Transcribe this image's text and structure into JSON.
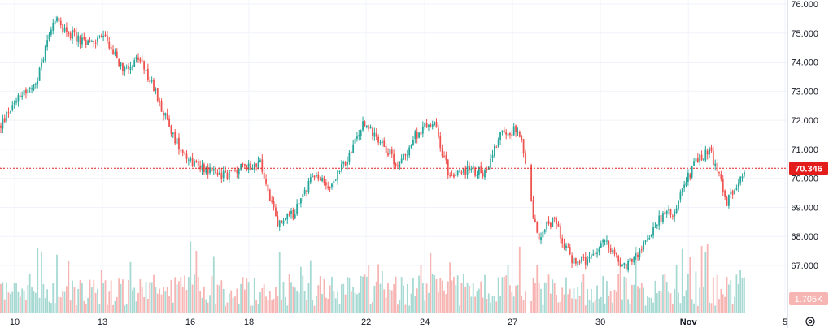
{
  "chart_data": {
    "type": "candlestick",
    "grid": true,
    "colors": {
      "up": "#26a69a",
      "down": "#ef5350",
      "up_volume": "#a7d9d3",
      "down_volume": "#f6b5b3",
      "grid": "#f0f3fa",
      "axis_text": "#131722",
      "price_line": "#e31c1c"
    },
    "y_axis": {
      "side": "right",
      "ticks": [
        {
          "value": 67,
          "label": "67.000"
        },
        {
          "value": 68,
          "label": "68.000"
        },
        {
          "value": 69,
          "label": "69.000"
        },
        {
          "value": 70,
          "label": "70.000"
        },
        {
          "value": 71,
          "label": "71.000"
        },
        {
          "value": 72,
          "label": "72.000"
        },
        {
          "value": 73,
          "label": "73.000"
        },
        {
          "value": 74,
          "label": "74.000"
        },
        {
          "value": 75,
          "label": "75.000"
        },
        {
          "value": 76,
          "label": "76.000"
        }
      ]
    },
    "x_axis": {
      "ticks": [
        "10",
        "13",
        "16",
        "18",
        "22",
        "24",
        "27",
        "30",
        "Nov",
        "5"
      ]
    },
    "last_price": {
      "value": 70.346,
      "label": "70.346"
    },
    "volume_label": "1.705K",
    "settings_icon": "settings-gear-icon",
    "price_path": [
      {
        "date": "10",
        "price": 71.8
      },
      {
        "date": "10",
        "price": 72.9
      },
      {
        "date": "11",
        "price": 73.1
      },
      {
        "date": "11",
        "price": 75.5
      },
      {
        "date": "12",
        "price": 75.0
      },
      {
        "date": "12",
        "price": 74.6
      },
      {
        "date": "13",
        "price": 74.9
      },
      {
        "date": "13",
        "price": 73.8
      },
      {
        "date": "14",
        "price": 74.1
      },
      {
        "date": "14",
        "price": 72.9
      },
      {
        "date": "15",
        "price": 71.4
      },
      {
        "date": "15",
        "price": 70.6
      },
      {
        "date": "16",
        "price": 70.3
      },
      {
        "date": "17",
        "price": 70.1
      },
      {
        "date": "17",
        "price": 70.4
      },
      {
        "date": "18",
        "price": 70.5
      },
      {
        "date": "19",
        "price": 68.4
      },
      {
        "date": "20",
        "price": 68.8
      },
      {
        "date": "21",
        "price": 70.1
      },
      {
        "date": "21",
        "price": 69.7
      },
      {
        "date": "22",
        "price": 70.6
      },
      {
        "date": "22",
        "price": 71.9
      },
      {
        "date": "23",
        "price": 71.3
      },
      {
        "date": "23",
        "price": 70.4
      },
      {
        "date": "24",
        "price": 71.5
      },
      {
        "date": "24",
        "price": 72.0
      },
      {
        "date": "25",
        "price": 70.0
      },
      {
        "date": "25",
        "price": 70.3
      },
      {
        "date": "26",
        "price": 70.2
      },
      {
        "date": "26",
        "price": 71.7
      },
      {
        "date": "27",
        "price": 71.6
      },
      {
        "date": "28",
        "price": 68.0
      },
      {
        "date": "28",
        "price": 68.6
      },
      {
        "date": "29",
        "price": 67.2
      },
      {
        "date": "29",
        "price": 67.1
      },
      {
        "date": "30",
        "price": 67.9
      },
      {
        "date": "30",
        "price": 66.9
      },
      {
        "date": "31",
        "price": 67.5
      },
      {
        "date": "31",
        "price": 68.6
      },
      {
        "date": "Nov",
        "price": 68.9
      },
      {
        "date": "Nov",
        "price": 70.4
      },
      {
        "date": "Nov",
        "price": 71.0
      },
      {
        "date": "Nov",
        "price": 69.2
      },
      {
        "date": "Nov",
        "price": 70.346
      }
    ]
  }
}
